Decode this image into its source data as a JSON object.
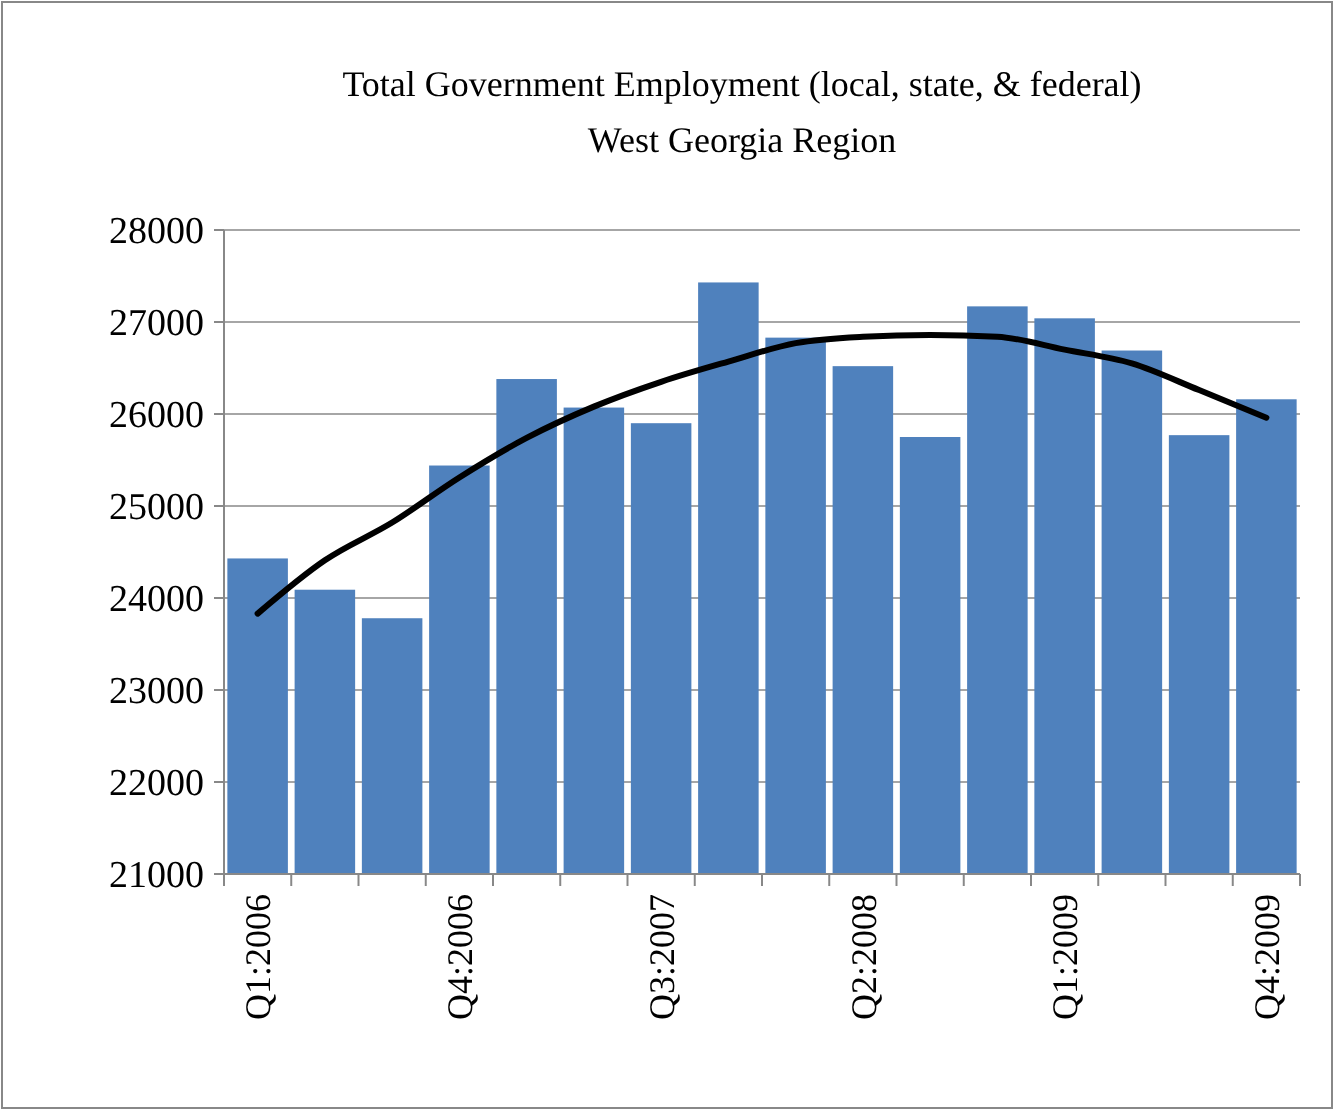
{
  "chart_data": {
    "type": "bar",
    "title": "Total Government Employment (local, state, & federal)",
    "subtitle": "West Georgia Region",
    "categories": [
      "Q1:2006",
      null,
      null,
      "Q4:2006",
      null,
      null,
      "Q3:2007",
      null,
      null,
      "Q2:2008",
      null,
      null,
      "Q1:2009",
      null,
      null,
      "Q4:2009"
    ],
    "series": [
      {
        "color": "#4f81bd",
        "values": [
          24430,
          24090,
          23780,
          25440,
          26380,
          26070,
          25900,
          27430,
          26830,
          26520,
          25750,
          27170,
          27040,
          26690,
          25770,
          26160
        ]
      },
      {
        "type": "line",
        "color": "#000000",
        "values": [
          23830,
          24410,
          24820,
          25310,
          25740,
          26080,
          26350,
          26570,
          26770,
          26840,
          26860,
          26840,
          26700,
          26550,
          26260,
          25960
        ]
      }
    ],
    "ylim": [
      21000,
      28000
    ],
    "yticks": [
      21000,
      22000,
      23000,
      24000,
      25000,
      26000,
      27000,
      28000
    ],
    "grid": "y"
  }
}
